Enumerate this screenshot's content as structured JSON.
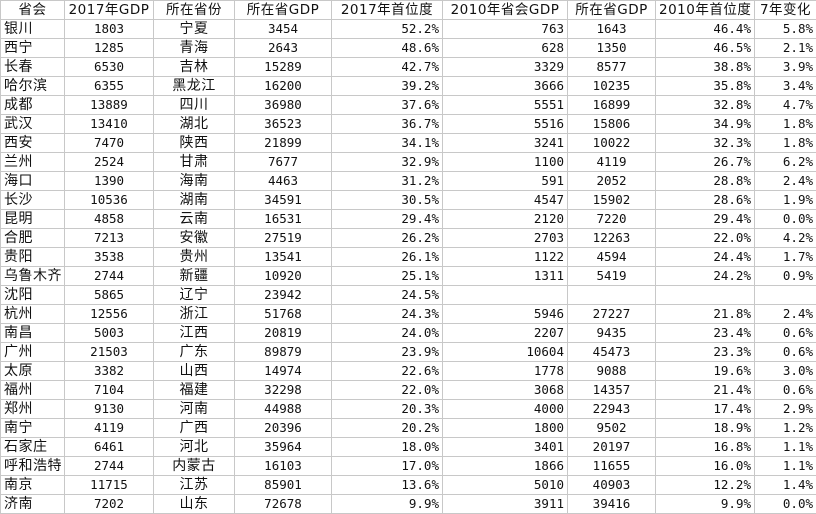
{
  "headers": [
    "省会",
    "2017年GDP",
    "所在省份",
    "所在省GDP",
    "2017年首位度",
    "2010年省会GDP",
    "所在省GDP",
    "2010年首位度",
    "7年变化"
  ],
  "rows": [
    [
      "银川",
      "1803",
      "宁夏",
      "3454",
      "52.2%",
      "763",
      "1643",
      "46.4%",
      "5.8%"
    ],
    [
      "西宁",
      "1285",
      "青海",
      "2643",
      "48.6%",
      "628",
      "1350",
      "46.5%",
      "2.1%"
    ],
    [
      "长春",
      "6530",
      "吉林",
      "15289",
      "42.7%",
      "3329",
      "8577",
      "38.8%",
      "3.9%"
    ],
    [
      "哈尔滨",
      "6355",
      "黑龙江",
      "16200",
      "39.2%",
      "3666",
      "10235",
      "35.8%",
      "3.4%"
    ],
    [
      "成都",
      "13889",
      "四川",
      "36980",
      "37.6%",
      "5551",
      "16899",
      "32.8%",
      "4.7%"
    ],
    [
      "武汉",
      "13410",
      "湖北",
      "36523",
      "36.7%",
      "5516",
      "15806",
      "34.9%",
      "1.8%"
    ],
    [
      "西安",
      "7470",
      "陕西",
      "21899",
      "34.1%",
      "3241",
      "10022",
      "32.3%",
      "1.8%"
    ],
    [
      "兰州",
      "2524",
      "甘肃",
      "7677",
      "32.9%",
      "1100",
      "4119",
      "26.7%",
      "6.2%"
    ],
    [
      "海口",
      "1390",
      "海南",
      "4463",
      "31.2%",
      "591",
      "2052",
      "28.8%",
      "2.4%"
    ],
    [
      "长沙",
      "10536",
      "湖南",
      "34591",
      "30.5%",
      "4547",
      "15902",
      "28.6%",
      "1.9%"
    ],
    [
      "昆明",
      "4858",
      "云南",
      "16531",
      "29.4%",
      "2120",
      "7220",
      "29.4%",
      "0.0%"
    ],
    [
      "合肥",
      "7213",
      "安徽",
      "27519",
      "26.2%",
      "2703",
      "12263",
      "22.0%",
      "4.2%"
    ],
    [
      "贵阳",
      "3538",
      "贵州",
      "13541",
      "26.1%",
      "1122",
      "4594",
      "24.4%",
      "1.7%"
    ],
    [
      "乌鲁木齐",
      "2744",
      "新疆",
      "10920",
      "25.1%",
      "1311",
      "5419",
      "24.2%",
      "0.9%"
    ],
    [
      "沈阳",
      "5865",
      "辽宁",
      "23942",
      "24.5%",
      "",
      "",
      "",
      ""
    ],
    [
      "杭州",
      "12556",
      "浙江",
      "51768",
      "24.3%",
      "5946",
      "27227",
      "21.8%",
      "2.4%"
    ],
    [
      "南昌",
      "5003",
      "江西",
      "20819",
      "24.0%",
      "2207",
      "9435",
      "23.4%",
      "0.6%"
    ],
    [
      "广州",
      "21503",
      "广东",
      "89879",
      "23.9%",
      "10604",
      "45473",
      "23.3%",
      "0.6%"
    ],
    [
      "太原",
      "3382",
      "山西",
      "14974",
      "22.6%",
      "1778",
      "9088",
      "19.6%",
      "3.0%"
    ],
    [
      "福州",
      "7104",
      "福建",
      "32298",
      "22.0%",
      "3068",
      "14357",
      "21.4%",
      "0.6%"
    ],
    [
      "郑州",
      "9130",
      "河南",
      "44988",
      "20.3%",
      "4000",
      "22943",
      "17.4%",
      "2.9%"
    ],
    [
      "南宁",
      "4119",
      "广西",
      "20396",
      "20.2%",
      "1800",
      "9502",
      "18.9%",
      "1.2%"
    ],
    [
      "石家庄",
      "6461",
      "河北",
      "35964",
      "18.0%",
      "3401",
      "20197",
      "16.8%",
      "1.1%"
    ],
    [
      "呼和浩特",
      "2744",
      "内蒙古",
      "16103",
      "17.0%",
      "1866",
      "11655",
      "16.0%",
      "1.1%"
    ],
    [
      "南京",
      "11715",
      "江苏",
      "85901",
      "13.6%",
      "5010",
      "40903",
      "12.2%",
      "1.4%"
    ],
    [
      "济南",
      "7202",
      "山东",
      "72678",
      "9.9%",
      "3911",
      "39416",
      "9.9%",
      "0.0%"
    ]
  ]
}
